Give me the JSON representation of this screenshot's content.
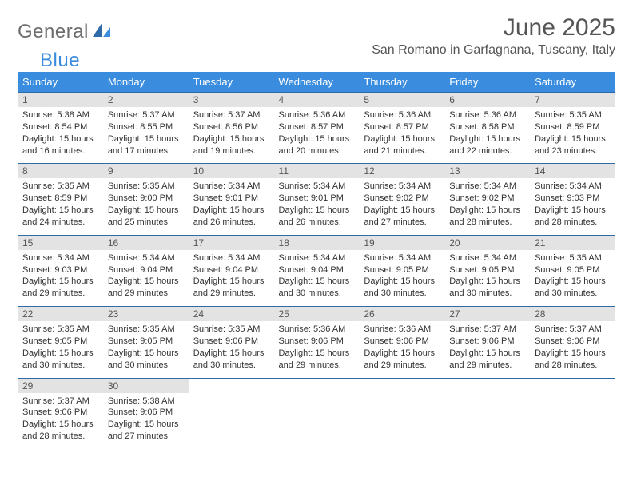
{
  "brand": {
    "part1": "General",
    "part2": "Blue"
  },
  "title": "June 2025",
  "location": "San Romano in Garfagnana, Tuscany, Italy",
  "colors": {
    "header_bg": "#3a8dde",
    "header_text": "#ffffff",
    "daynum_bg": "#e3e3e3",
    "row_border": "#2f6aa8",
    "logo_gray": "#6c6c6c",
    "logo_blue": "#3a8dde",
    "title_color": "#555555"
  },
  "day_headers": [
    "Sunday",
    "Monday",
    "Tuesday",
    "Wednesday",
    "Thursday",
    "Friday",
    "Saturday"
  ],
  "weeks": [
    [
      {
        "n": "1",
        "sr": "5:38 AM",
        "ss": "8:54 PM",
        "dl": "15 hours and 16 minutes."
      },
      {
        "n": "2",
        "sr": "5:37 AM",
        "ss": "8:55 PM",
        "dl": "15 hours and 17 minutes."
      },
      {
        "n": "3",
        "sr": "5:37 AM",
        "ss": "8:56 PM",
        "dl": "15 hours and 19 minutes."
      },
      {
        "n": "4",
        "sr": "5:36 AM",
        "ss": "8:57 PM",
        "dl": "15 hours and 20 minutes."
      },
      {
        "n": "5",
        "sr": "5:36 AM",
        "ss": "8:57 PM",
        "dl": "15 hours and 21 minutes."
      },
      {
        "n": "6",
        "sr": "5:36 AM",
        "ss": "8:58 PM",
        "dl": "15 hours and 22 minutes."
      },
      {
        "n": "7",
        "sr": "5:35 AM",
        "ss": "8:59 PM",
        "dl": "15 hours and 23 minutes."
      }
    ],
    [
      {
        "n": "8",
        "sr": "5:35 AM",
        "ss": "8:59 PM",
        "dl": "15 hours and 24 minutes."
      },
      {
        "n": "9",
        "sr": "5:35 AM",
        "ss": "9:00 PM",
        "dl": "15 hours and 25 minutes."
      },
      {
        "n": "10",
        "sr": "5:34 AM",
        "ss": "9:01 PM",
        "dl": "15 hours and 26 minutes."
      },
      {
        "n": "11",
        "sr": "5:34 AM",
        "ss": "9:01 PM",
        "dl": "15 hours and 26 minutes."
      },
      {
        "n": "12",
        "sr": "5:34 AM",
        "ss": "9:02 PM",
        "dl": "15 hours and 27 minutes."
      },
      {
        "n": "13",
        "sr": "5:34 AM",
        "ss": "9:02 PM",
        "dl": "15 hours and 28 minutes."
      },
      {
        "n": "14",
        "sr": "5:34 AM",
        "ss": "9:03 PM",
        "dl": "15 hours and 28 minutes."
      }
    ],
    [
      {
        "n": "15",
        "sr": "5:34 AM",
        "ss": "9:03 PM",
        "dl": "15 hours and 29 minutes."
      },
      {
        "n": "16",
        "sr": "5:34 AM",
        "ss": "9:04 PM",
        "dl": "15 hours and 29 minutes."
      },
      {
        "n": "17",
        "sr": "5:34 AM",
        "ss": "9:04 PM",
        "dl": "15 hours and 29 minutes."
      },
      {
        "n": "18",
        "sr": "5:34 AM",
        "ss": "9:04 PM",
        "dl": "15 hours and 30 minutes."
      },
      {
        "n": "19",
        "sr": "5:34 AM",
        "ss": "9:05 PM",
        "dl": "15 hours and 30 minutes."
      },
      {
        "n": "20",
        "sr": "5:34 AM",
        "ss": "9:05 PM",
        "dl": "15 hours and 30 minutes."
      },
      {
        "n": "21",
        "sr": "5:35 AM",
        "ss": "9:05 PM",
        "dl": "15 hours and 30 minutes."
      }
    ],
    [
      {
        "n": "22",
        "sr": "5:35 AM",
        "ss": "9:05 PM",
        "dl": "15 hours and 30 minutes."
      },
      {
        "n": "23",
        "sr": "5:35 AM",
        "ss": "9:05 PM",
        "dl": "15 hours and 30 minutes."
      },
      {
        "n": "24",
        "sr": "5:35 AM",
        "ss": "9:06 PM",
        "dl": "15 hours and 30 minutes."
      },
      {
        "n": "25",
        "sr": "5:36 AM",
        "ss": "9:06 PM",
        "dl": "15 hours and 29 minutes."
      },
      {
        "n": "26",
        "sr": "5:36 AM",
        "ss": "9:06 PM",
        "dl": "15 hours and 29 minutes."
      },
      {
        "n": "27",
        "sr": "5:37 AM",
        "ss": "9:06 PM",
        "dl": "15 hours and 29 minutes."
      },
      {
        "n": "28",
        "sr": "5:37 AM",
        "ss": "9:06 PM",
        "dl": "15 hours and 28 minutes."
      }
    ],
    [
      {
        "n": "29",
        "sr": "5:37 AM",
        "ss": "9:06 PM",
        "dl": "15 hours and 28 minutes."
      },
      {
        "n": "30",
        "sr": "5:38 AM",
        "ss": "9:06 PM",
        "dl": "15 hours and 27 minutes."
      },
      null,
      null,
      null,
      null,
      null
    ]
  ],
  "labels": {
    "sunrise": "Sunrise: ",
    "sunset": "Sunset: ",
    "daylight": "Daylight: "
  }
}
